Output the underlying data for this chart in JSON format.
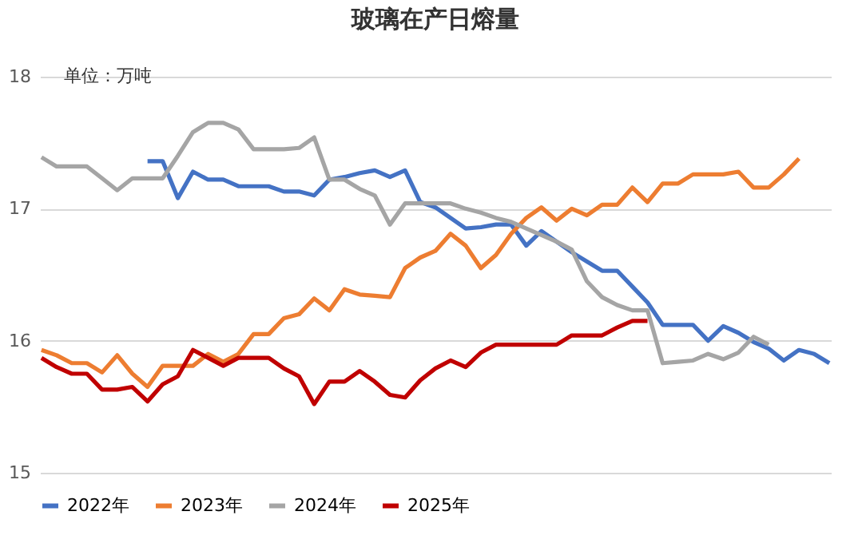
{
  "chart_data": {
    "type": "line",
    "title": "玻璃在产日熔量",
    "annotations": [
      "单位：万吨"
    ],
    "categories": [
      null,
      null,
      null,
      null,
      null,
      null,
      null,
      null,
      null,
      null,
      null,
      null,
      null,
      null,
      null,
      null,
      null,
      null,
      null,
      null,
      null,
      null,
      null,
      null,
      null,
      null,
      null,
      null,
      null,
      null,
      null,
      null,
      null,
      null,
      null,
      null,
      null,
      null,
      null,
      null,
      null,
      null,
      null,
      null,
      null,
      null,
      null,
      null,
      null,
      null,
      null,
      null,
      null
    ],
    "series": [
      {
        "name": "2022年",
        "color": "#4472c4",
        "values": [
          null,
          null,
          null,
          null,
          null,
          null,
          null,
          17.36,
          17.36,
          17.08,
          17.28,
          17.22,
          17.22,
          17.17,
          17.17,
          17.17,
          17.13,
          17.13,
          17.1,
          17.22,
          17.24,
          17.27,
          17.29,
          17.24,
          17.29,
          17.05,
          17.01,
          16.93,
          16.85,
          16.86,
          16.88,
          16.88,
          16.72,
          16.83,
          16.75,
          16.67,
          16.6,
          16.53,
          16.53,
          16.41,
          16.29,
          16.12,
          16.12,
          16.12,
          16.0,
          16.11,
          16.06,
          15.99,
          15.94,
          15.85,
          15.93,
          15.9,
          15.83
        ]
      },
      {
        "name": "2023年",
        "color": "#ed7d31",
        "values": [
          15.93,
          15.89,
          15.83,
          15.83,
          15.76,
          15.89,
          15.75,
          15.65,
          15.81,
          15.81,
          15.81,
          15.9,
          15.84,
          15.9,
          16.05,
          16.05,
          16.17,
          16.2,
          16.32,
          16.23,
          16.39,
          16.35,
          16.34,
          16.33,
          16.55,
          16.63,
          16.68,
          16.81,
          16.72,
          16.55,
          16.65,
          16.81,
          16.93,
          17.01,
          16.91,
          17.0,
          16.95,
          17.03,
          17.03,
          17.16,
          17.05,
          17.19,
          17.19,
          17.26,
          17.26,
          17.26,
          17.28,
          17.16,
          17.16,
          17.26,
          17.38,
          null,
          null
        ]
      },
      {
        "name": "2024年",
        "color": "#a5a5a5",
        "values": [
          17.39,
          17.32,
          17.32,
          17.32,
          17.23,
          17.14,
          17.23,
          17.23,
          17.23,
          17.4,
          17.58,
          17.65,
          17.65,
          17.6,
          17.45,
          17.45,
          17.45,
          17.46,
          17.54,
          17.22,
          17.22,
          17.15,
          17.1,
          16.88,
          17.04,
          17.04,
          17.04,
          17.04,
          17.0,
          16.97,
          16.93,
          16.9,
          16.85,
          16.8,
          16.75,
          16.69,
          16.45,
          16.33,
          16.27,
          16.23,
          16.23,
          15.83,
          15.84,
          15.85,
          15.9,
          15.86,
          15.91,
          16.03,
          15.97,
          null,
          null,
          null,
          null
        ]
      },
      {
        "name": "2025年",
        "color": "#c00000",
        "values": [
          15.87,
          15.8,
          15.75,
          15.75,
          15.63,
          15.63,
          15.65,
          15.54,
          15.67,
          15.73,
          15.93,
          15.87,
          15.81,
          15.87,
          15.87,
          15.87,
          15.79,
          15.73,
          15.52,
          15.69,
          15.69,
          15.77,
          15.69,
          15.59,
          15.57,
          15.7,
          15.79,
          15.85,
          15.8,
          15.91,
          15.97,
          15.97,
          15.97,
          15.97,
          15.97,
          16.04,
          16.04,
          16.04,
          16.1,
          16.15,
          16.15,
          null,
          null,
          null,
          null,
          null,
          null,
          null,
          null,
          null,
          null,
          null,
          null
        ]
      }
    ],
    "ylim": [
      15,
      18
    ],
    "yticks": [
      15,
      16,
      17,
      18
    ],
    "grid": "y",
    "legend": "bottom",
    "tick_labels": "y"
  }
}
